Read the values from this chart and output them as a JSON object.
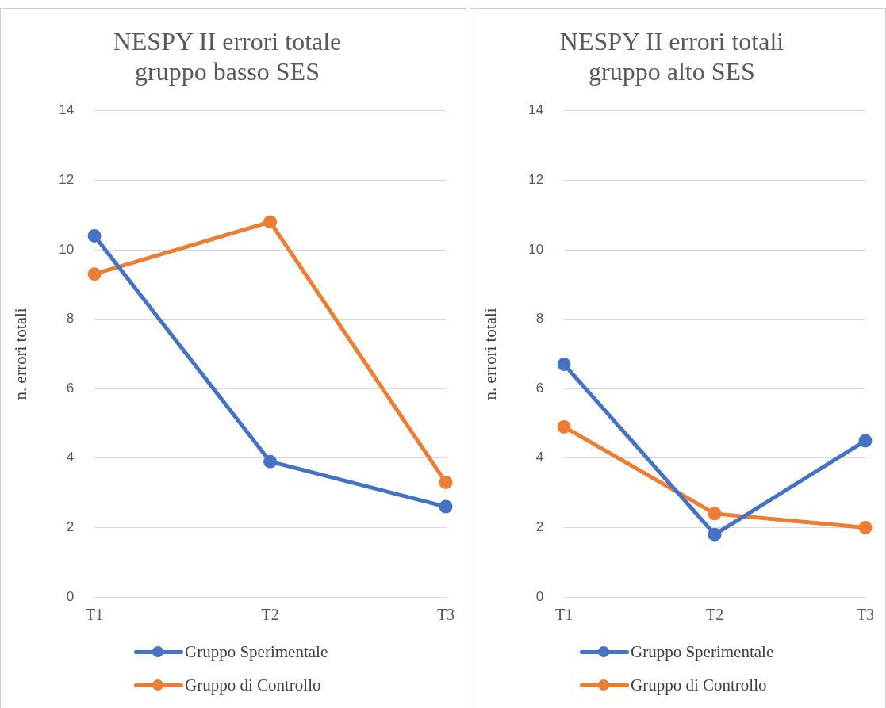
{
  "chart_data": [
    {
      "type": "line",
      "title": "NESPY II errori totale\ngruppo basso SES",
      "ylabel": "n. errori totali",
      "categories": [
        "T1",
        "T2",
        "T3"
      ],
      "ylim": [
        0,
        14
      ],
      "yticks": [
        0,
        2,
        4,
        6,
        8,
        10,
        12,
        14
      ],
      "grid": "y",
      "legend": "bottom",
      "marker": "circle",
      "series": [
        {
          "name": "Gruppo Sperimentale",
          "color": "#4472c4",
          "values": [
            10.4,
            3.9,
            2.6
          ]
        },
        {
          "name": "Gruppo di Controllo",
          "color": "#ed7d31",
          "values": [
            9.3,
            10.8,
            3.3
          ]
        }
      ]
    },
    {
      "type": "line",
      "title": "NESPY II errori totali\ngruppo alto SES",
      "ylabel": "n. errori totali",
      "categories": [
        "T1",
        "T2",
        "T3"
      ],
      "ylim": [
        0,
        14
      ],
      "yticks": [
        0,
        2,
        4,
        6,
        8,
        10,
        12,
        14
      ],
      "grid": "y",
      "legend": "bottom",
      "marker": "circle",
      "series": [
        {
          "name": "Gruppo Sperimentale",
          "color": "#4472c4",
          "values": [
            6.7,
            1.8,
            4.5
          ]
        },
        {
          "name": "Gruppo di Controllo",
          "color": "#ed7d31",
          "values": [
            4.9,
            2.4,
            2.0
          ]
        }
      ]
    }
  ]
}
